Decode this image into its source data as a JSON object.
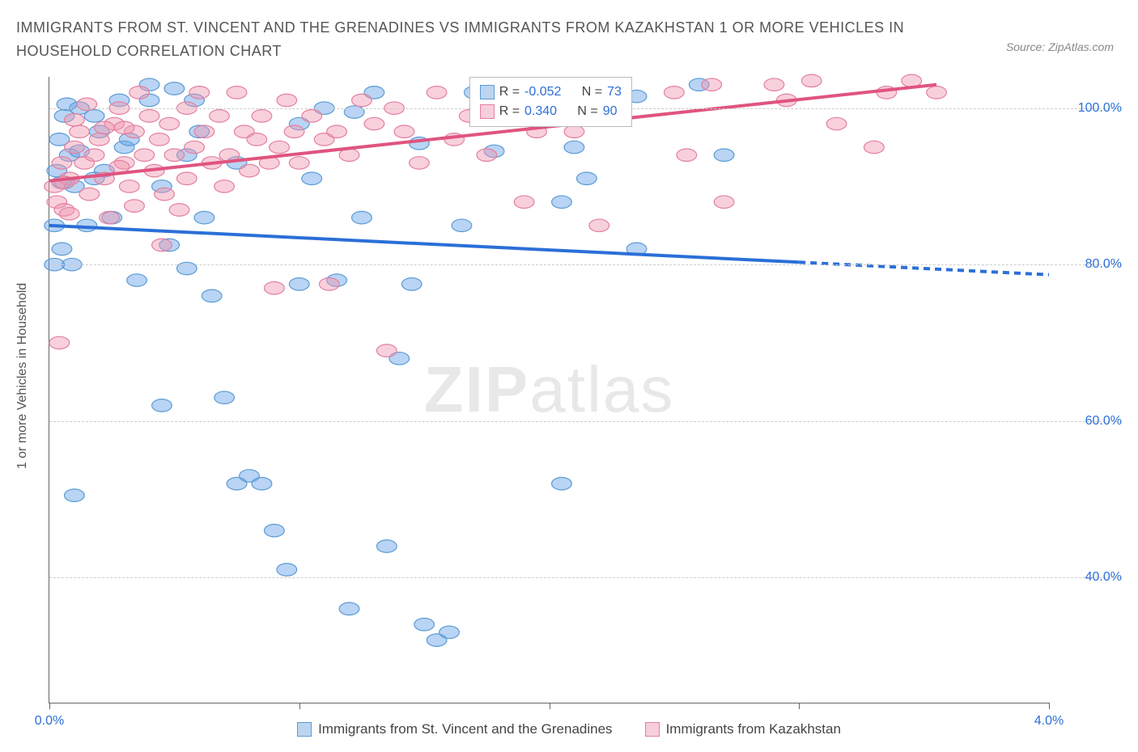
{
  "title": "IMMIGRANTS FROM ST. VINCENT AND THE GRENADINES VS IMMIGRANTS FROM KAZAKHSTAN 1 OR MORE VEHICLES IN HOUSEHOLD CORRELATION CHART",
  "source": "Source: ZipAtlas.com",
  "ylabel": "1 or more Vehicles in Household",
  "watermark_bold": "ZIP",
  "watermark_light": "atlas",
  "chart": {
    "type": "scatter",
    "xlim": [
      0.0,
      4.0
    ],
    "ylim": [
      24.0,
      104.0
    ],
    "xticks": [
      0.0,
      1.0,
      2.0,
      3.0,
      4.0
    ],
    "xtick_labels": [
      "0.0%",
      "",
      "",
      "",
      "4.0%"
    ],
    "yticks": [
      40.0,
      60.0,
      80.0,
      100.0
    ],
    "ytick_labels": [
      "40.0%",
      "60.0%",
      "80.0%",
      "100.0%"
    ],
    "grid_color": "#cccccc",
    "background_color": "#ffffff",
    "series": [
      {
        "name": "Immigrants from St. Vincent and the Grenadines",
        "color_fill": "rgba(100,160,230,0.45)",
        "color_stroke": "#5a9bd5",
        "swatch_fill": "#bcd4ef",
        "swatch_border": "#5a9bd5",
        "marker_radius": 10,
        "R": "-0.052",
        "N": "73",
        "trend": {
          "x1": 0.0,
          "y1": 85.0,
          "x2": 3.0,
          "y2": 80.3,
          "x2_dash": 4.0,
          "y2_dash": 78.7,
          "color": "#2b6fd8",
          "width": 2
        },
        "points": [
          [
            0.02,
            85
          ],
          [
            0.03,
            92
          ],
          [
            0.04,
            96
          ],
          [
            0.06,
            99
          ],
          [
            0.1,
            90
          ],
          [
            0.08,
            94
          ],
          [
            0.12,
            100
          ],
          [
            0.05,
            82
          ],
          [
            0.09,
            80
          ],
          [
            0.15,
            85
          ],
          [
            0.18,
            99
          ],
          [
            0.2,
            97
          ],
          [
            0.22,
            92
          ],
          [
            0.25,
            86
          ],
          [
            0.28,
            101
          ],
          [
            0.3,
            95
          ],
          [
            0.35,
            78
          ],
          [
            0.4,
            103
          ],
          [
            0.45,
            90
          ],
          [
            0.5,
            102.5
          ],
          [
            0.55,
            94
          ],
          [
            0.58,
            101
          ],
          [
            0.6,
            97
          ],
          [
            0.62,
            86
          ],
          [
            0.65,
            76
          ],
          [
            0.7,
            63
          ],
          [
            0.75,
            52
          ],
          [
            0.8,
            53
          ],
          [
            0.85,
            52
          ],
          [
            0.9,
            46
          ],
          [
            0.95,
            41
          ],
          [
            1.0,
            98
          ],
          [
            1.05,
            91
          ],
          [
            1.1,
            100
          ],
          [
            1.15,
            78
          ],
          [
            1.2,
            36
          ],
          [
            1.25,
            86
          ],
          [
            1.3,
            102
          ],
          [
            1.35,
            44
          ],
          [
            1.4,
            68
          ],
          [
            1.5,
            34
          ],
          [
            1.55,
            32
          ],
          [
            1.6,
            33
          ],
          [
            1.65,
            85
          ],
          [
            1.7,
            102
          ],
          [
            1.8,
            100
          ],
          [
            2.0,
            103
          ],
          [
            2.05,
            52
          ],
          [
            2.1,
            95
          ],
          [
            2.15,
            91
          ],
          [
            2.35,
            101.5
          ],
          [
            2.6,
            103
          ],
          [
            2.7,
            94
          ],
          [
            2.05,
            88
          ],
          [
            0.1,
            50.5
          ],
          [
            0.45,
            62
          ],
          [
            1.45,
            77.5
          ],
          [
            0.05,
            90.5
          ],
          [
            0.4,
            101
          ],
          [
            0.32,
            96
          ],
          [
            0.07,
            100.5
          ],
          [
            0.48,
            82.5
          ],
          [
            1.0,
            77.5
          ],
          [
            0.02,
            80
          ],
          [
            0.55,
            79.5
          ],
          [
            1.95,
            101.5
          ],
          [
            1.78,
            94.5
          ],
          [
            1.48,
            95.5
          ],
          [
            2.35,
            82
          ],
          [
            0.12,
            94.5
          ],
          [
            0.75,
            93
          ],
          [
            0.18,
            91
          ],
          [
            1.22,
            99.5
          ]
        ]
      },
      {
        "name": "Immigrants from Kazakhstan",
        "color_fill": "rgba(240,150,175,0.45)",
        "color_stroke": "#e37fa0",
        "swatch_fill": "#f6cfdb",
        "swatch_border": "#e37fa0",
        "marker_radius": 10,
        "R": "0.340",
        "N": "90",
        "trend": {
          "x1": 0.0,
          "y1": 90.7,
          "x2": 3.55,
          "y2": 103.0,
          "color": "#e0547f",
          "width": 2
        },
        "points": [
          [
            0.02,
            90
          ],
          [
            0.03,
            88
          ],
          [
            0.05,
            93
          ],
          [
            0.06,
            87
          ],
          [
            0.08,
            91
          ],
          [
            0.1,
            95
          ],
          [
            0.12,
            97
          ],
          [
            0.14,
            93
          ],
          [
            0.16,
            89
          ],
          [
            0.18,
            94
          ],
          [
            0.2,
            96
          ],
          [
            0.22,
            91
          ],
          [
            0.24,
            86
          ],
          [
            0.26,
            98
          ],
          [
            0.28,
            100
          ],
          [
            0.04,
            70
          ],
          [
            0.3,
            93
          ],
          [
            0.32,
            90
          ],
          [
            0.34,
            97
          ],
          [
            0.36,
            102
          ],
          [
            0.38,
            94
          ],
          [
            0.4,
            99
          ],
          [
            0.42,
            92
          ],
          [
            0.44,
            96
          ],
          [
            0.46,
            89
          ],
          [
            0.48,
            98
          ],
          [
            0.5,
            94
          ],
          [
            0.52,
            87
          ],
          [
            0.55,
            91
          ],
          [
            0.58,
            95
          ],
          [
            0.6,
            102
          ],
          [
            0.62,
            97
          ],
          [
            0.65,
            93
          ],
          [
            0.68,
            99
          ],
          [
            0.7,
            90
          ],
          [
            0.72,
            94
          ],
          [
            0.75,
            102
          ],
          [
            0.78,
            97
          ],
          [
            0.8,
            92
          ],
          [
            0.83,
            96
          ],
          [
            0.85,
            99
          ],
          [
            0.88,
            93
          ],
          [
            0.9,
            77
          ],
          [
            0.92,
            95
          ],
          [
            0.95,
            101
          ],
          [
            0.98,
            97
          ],
          [
            1.0,
            93
          ],
          [
            1.05,
            99
          ],
          [
            1.1,
            96
          ],
          [
            1.12,
            77.5
          ],
          [
            1.15,
            97
          ],
          [
            1.2,
            94
          ],
          [
            1.25,
            101
          ],
          [
            1.3,
            98
          ],
          [
            1.38,
            100
          ],
          [
            1.35,
            69
          ],
          [
            1.42,
            97
          ],
          [
            1.48,
            93
          ],
          [
            1.55,
            102
          ],
          [
            1.62,
            96
          ],
          [
            1.68,
            99
          ],
          [
            1.75,
            94
          ],
          [
            1.82,
            100
          ],
          [
            1.9,
            88
          ],
          [
            1.95,
            97
          ],
          [
            2.05,
            101
          ],
          [
            2.1,
            97
          ],
          [
            2.2,
            85
          ],
          [
            2.5,
            102
          ],
          [
            2.55,
            94
          ],
          [
            2.65,
            103
          ],
          [
            2.7,
            88
          ],
          [
            2.9,
            103
          ],
          [
            2.95,
            101
          ],
          [
            3.05,
            103.5
          ],
          [
            3.15,
            98
          ],
          [
            3.3,
            95
          ],
          [
            3.35,
            102
          ],
          [
            3.45,
            103.5
          ],
          [
            3.55,
            102
          ],
          [
            0.15,
            100.5
          ],
          [
            0.1,
            98.5
          ],
          [
            0.22,
            97.5
          ],
          [
            0.08,
            86.5
          ],
          [
            0.06,
            90.5
          ],
          [
            0.34,
            87.5
          ],
          [
            0.55,
            100
          ],
          [
            0.28,
            92.5
          ],
          [
            0.45,
            82.5
          ],
          [
            0.3,
            97.5
          ]
        ]
      }
    ],
    "legend_box": {
      "top_pct": 0,
      "left_pct": 42
    }
  }
}
